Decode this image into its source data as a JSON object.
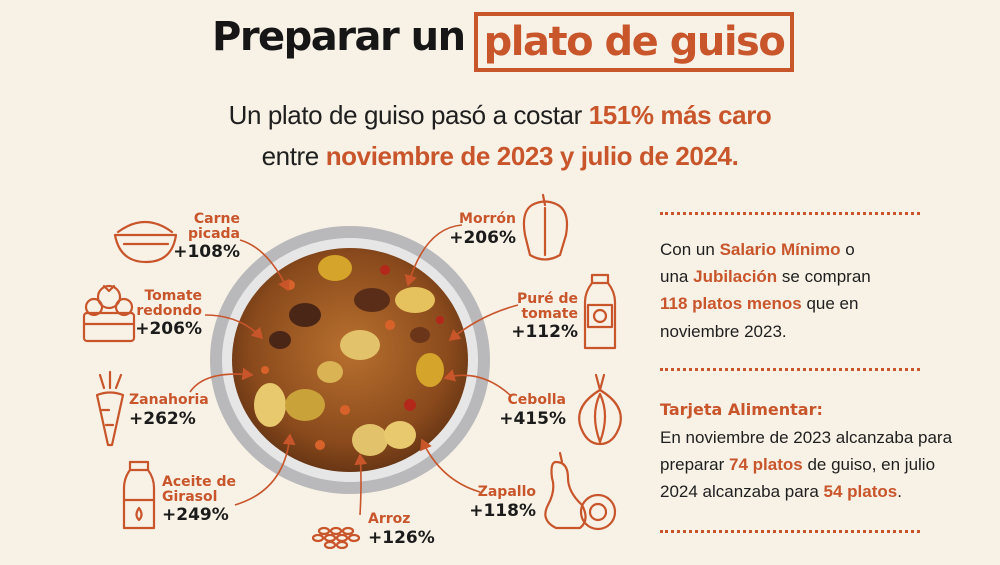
{
  "title": {
    "left": "Preparar un",
    "boxed": "plato de guiso"
  },
  "subtitle": {
    "line1_a": "Un plato de guiso pasó a costar",
    "line1_b": "151% más caro",
    "line2_a": "entre",
    "line2_b": "noviembre de 2023 y julio de 2024."
  },
  "ingredients": {
    "carne": {
      "name_1": "Carne",
      "name_2": "picada",
      "pct": "+108%",
      "icon": "meat-bowl-icon"
    },
    "tomate": {
      "name_1": "Tomate",
      "name_2": "redondo",
      "pct": "+206%",
      "icon": "tomato-basket-icon"
    },
    "zanahoria": {
      "name_1": "Zanahoria",
      "pct": "+262%",
      "icon": "carrot-icon"
    },
    "aceite": {
      "name_1": "Aceite de",
      "name_2": "Girasol",
      "pct": "+249%",
      "icon": "oil-bottle-icon"
    },
    "arroz": {
      "name_1": "Arroz",
      "pct": "+126%",
      "icon": "rice-icon"
    },
    "morron": {
      "name_1": "Morrón",
      "pct": "+206%",
      "icon": "pepper-icon"
    },
    "pure": {
      "name_1": "Puré de",
      "name_2": "tomate",
      "pct": "+112%",
      "icon": "puree-bottle-icon"
    },
    "cebolla": {
      "name_1": "Cebolla",
      "pct": "+415%",
      "icon": "onion-icon"
    },
    "zapallo": {
      "name_1": "Zapallo",
      "pct": "+118%",
      "icon": "squash-icon"
    }
  },
  "info": {
    "p1": {
      "l1_a": "Con un",
      "l1_b": "Salario Mínimo",
      "l1_c": "o",
      "l2_a": "una",
      "l2_b": "Jubilación",
      "l2_c": "se compran",
      "l3_a": "118 platos menos",
      "l3_b": "que en",
      "l4": "noviembre 2023."
    },
    "tarjeta_title": "Tarjeta Alimentar:",
    "p2": {
      "l1": "En noviembre de 2023 alcanzaba para",
      "l2_a": "preparar",
      "l2_b": "74 platos",
      "l2_c": "de guiso, en julio",
      "l3_a": "2024 alcanzaba para",
      "l3_b": "54 platos",
      "l3_c": "."
    }
  },
  "colors": {
    "accent": "#c9552b",
    "background": "#f7f1e6",
    "text": "#1b1b1b"
  }
}
